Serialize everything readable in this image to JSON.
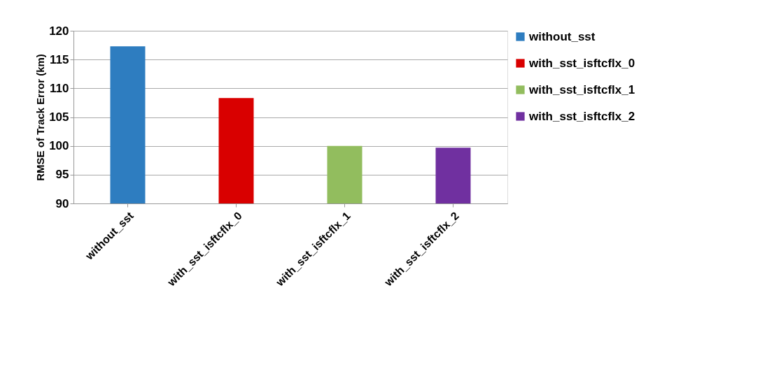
{
  "chart_data": {
    "type": "bar",
    "ylabel": "RMSE of Track Error (km)",
    "categories": [
      "without_sst",
      "with_sst_isftcflx_0",
      "with_sst_isftcflx_1",
      "with_sst_isftcflx_2"
    ],
    "series": [
      {
        "name": "without_sst",
        "color": "#2e7dc0",
        "values": [
          117.3,
          null,
          null,
          null
        ]
      },
      {
        "name": "with_sst_isftcflx_0",
        "color": "#d90000",
        "values": [
          null,
          108.3,
          null,
          null
        ]
      },
      {
        "name": "with_sst_isftcflx_1",
        "color": "#92bd5e",
        "values": [
          null,
          null,
          100.0,
          null
        ]
      },
      {
        "name": "with_sst_isftcflx_2",
        "color": "#7030a0",
        "values": [
          null,
          null,
          null,
          99.7
        ]
      }
    ],
    "ylim": [
      90,
      120
    ],
    "yticks": [
      90,
      95,
      100,
      105,
      110,
      115,
      120
    ],
    "grid": "y",
    "legend": "right"
  }
}
